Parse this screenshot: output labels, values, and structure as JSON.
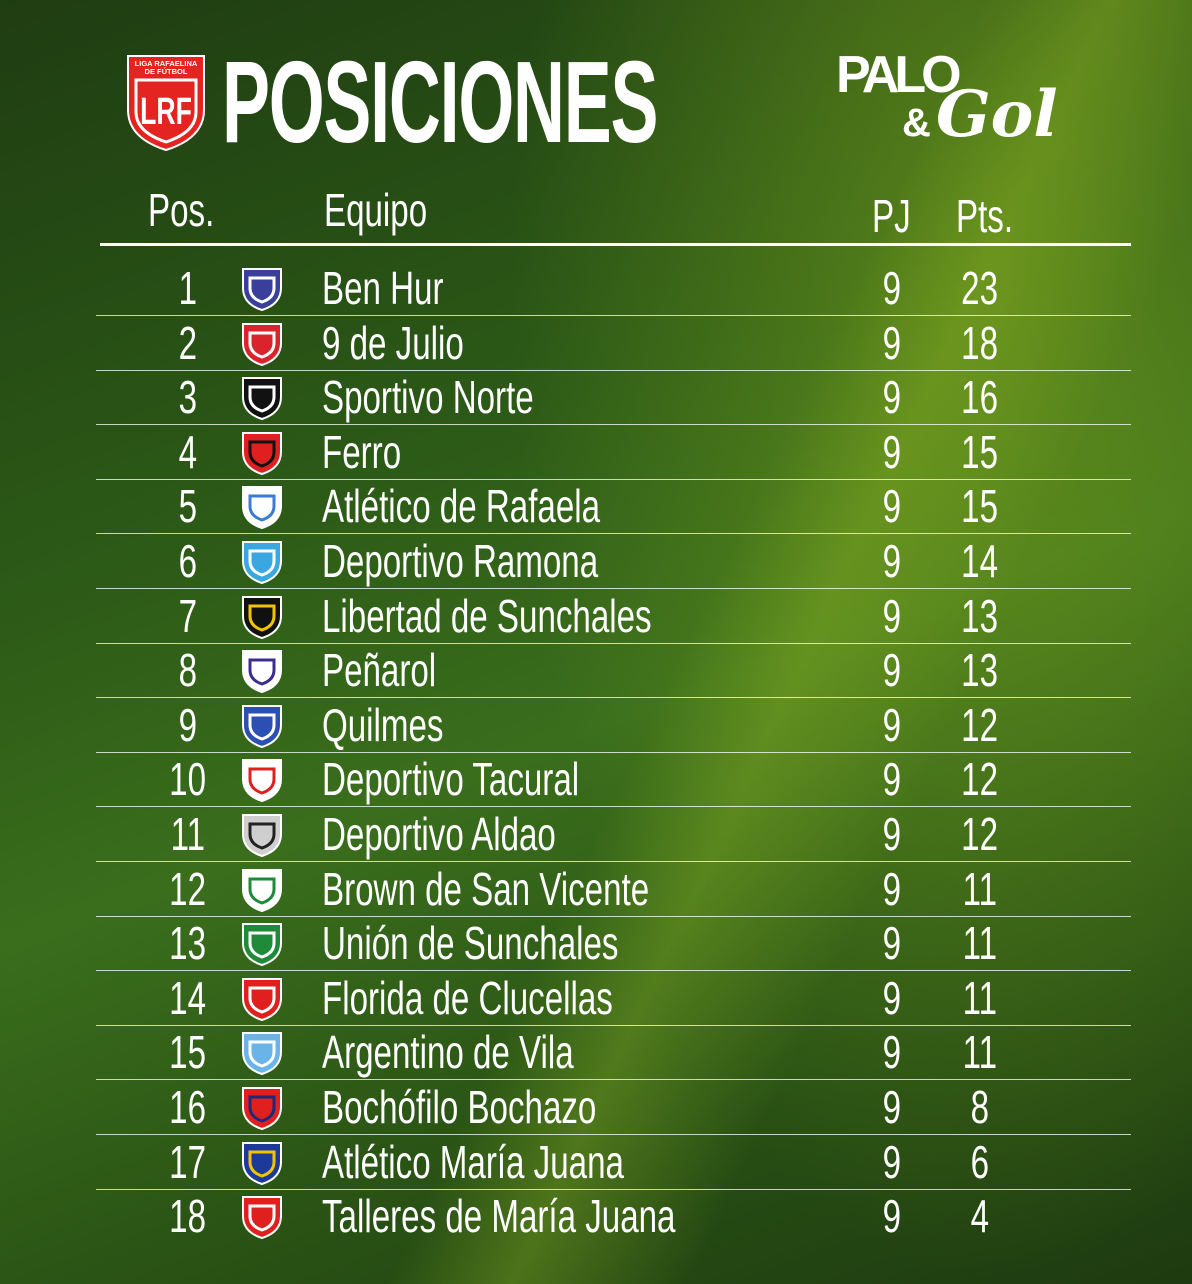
{
  "header": {
    "title": "POSICIONES",
    "league_logo": {
      "top_text": "LIGA RAFAELINA",
      "sub_text": "DE FÚTBOL",
      "letters": "LRF",
      "color": "#e32420"
    },
    "brand_logo": {
      "text": "PALO & Gol"
    }
  },
  "columns": {
    "pos": "Pos.",
    "team": "Equipo",
    "pj": "PJ",
    "pts": "Pts."
  },
  "rows": [
    {
      "pos": "1",
      "team": "Ben Hur",
      "pj": "9",
      "pts": "23",
      "crest": [
        "#3b3f9c",
        "#ffffff"
      ]
    },
    {
      "pos": "2",
      "team": "9 de Julio",
      "pj": "9",
      "pts": "18",
      "crest": [
        "#d9242b",
        "#ffffff"
      ]
    },
    {
      "pos": "3",
      "team": "Sportivo Norte",
      "pj": "9",
      "pts": "16",
      "crest": [
        "#111111",
        "#ffffff"
      ]
    },
    {
      "pos": "4",
      "team": "Ferro",
      "pj": "9",
      "pts": "15",
      "crest": [
        "#e0201f",
        "#111111"
      ]
    },
    {
      "pos": "5",
      "team": "Atlético de Rafaela",
      "pj": "9",
      "pts": "15",
      "crest": [
        "#ffffff",
        "#3a7bd5"
      ]
    },
    {
      "pos": "6",
      "team": "Deportivo Ramona",
      "pj": "9",
      "pts": "14",
      "crest": [
        "#3aa8e0",
        "#ffffff"
      ]
    },
    {
      "pos": "7",
      "team": "Libertad de Sunchales",
      "pj": "9",
      "pts": "13",
      "crest": [
        "#111111",
        "#f2c400"
      ]
    },
    {
      "pos": "8",
      "team": "Peñarol",
      "pj": "9",
      "pts": "13",
      "crest": [
        "#ffffff",
        "#3b2d8f"
      ]
    },
    {
      "pos": "9",
      "team": "Quilmes",
      "pj": "9",
      "pts": "12",
      "crest": [
        "#2b4fb3",
        "#ffffff"
      ]
    },
    {
      "pos": "10",
      "team": "Deportivo Tacural",
      "pj": "9",
      "pts": "12",
      "crest": [
        "#ffffff",
        "#e0201f"
      ]
    },
    {
      "pos": "11",
      "team": "Deportivo Aldao",
      "pj": "9",
      "pts": "12",
      "crest": [
        "#cfcfcf",
        "#222222"
      ]
    },
    {
      "pos": "12",
      "team": "Brown de San Vicente",
      "pj": "9",
      "pts": "11",
      "crest": [
        "#ffffff",
        "#1e8a3a"
      ]
    },
    {
      "pos": "13",
      "team": "Unión de Sunchales",
      "pj": "9",
      "pts": "11",
      "crest": [
        "#1e8a3a",
        "#ffffff"
      ]
    },
    {
      "pos": "14",
      "team": "Florida de Clucellas",
      "pj": "9",
      "pts": "11",
      "crest": [
        "#e0201f",
        "#ffffff"
      ]
    },
    {
      "pos": "15",
      "team": "Argentino de Vila",
      "pj": "9",
      "pts": "11",
      "crest": [
        "#6ab4e8",
        "#ffffff"
      ]
    },
    {
      "pos": "16",
      "team": "Bochófilo Bochazo",
      "pj": "9",
      "pts": "8",
      "crest": [
        "#e0201f",
        "#1d2a7a"
      ]
    },
    {
      "pos": "17",
      "team": "Atlético María Juana",
      "pj": "9",
      "pts": "6",
      "crest": [
        "#1d3a9a",
        "#f2c400"
      ]
    },
    {
      "pos": "18",
      "team": "Talleres de María Juana",
      "pj": "9",
      "pts": "4",
      "crest": [
        "#e0201f",
        "#ffffff"
      ]
    }
  ]
}
